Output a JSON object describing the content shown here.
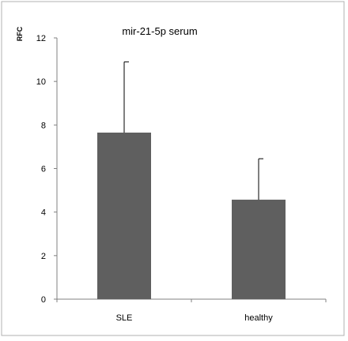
{
  "chart_data": {
    "type": "bar",
    "title": "mir-21-5p serum",
    "ylabel": "RFC",
    "xlabel": "",
    "categories": [
      "SLE",
      "healthy"
    ],
    "values": [
      7.65,
      4.57
    ],
    "error_upper": [
      3.25,
      1.88
    ],
    "ylim": [
      0,
      12
    ],
    "yticks": [
      0,
      2,
      4,
      6,
      8,
      10,
      12
    ],
    "grid": false,
    "legend": "none",
    "bar_color": "#5f5f5f"
  }
}
